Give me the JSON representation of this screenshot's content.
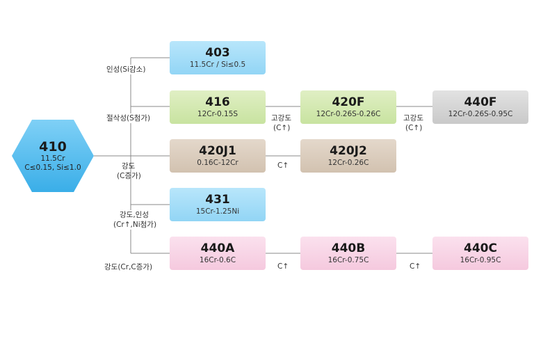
{
  "root": {
    "title": "410",
    "line1": "11.5Cr",
    "line2": "C≤0.15, Si≤1.0"
  },
  "grades": {
    "g403": {
      "title": "403",
      "sub": "11.5Cr / Si≤0.5"
    },
    "g416": {
      "title": "416",
      "sub": "12Cr-0.15S"
    },
    "g420f": {
      "title": "420F",
      "sub": "12Cr-0.26S-0.26C"
    },
    "g440f": {
      "title": "440F",
      "sub": "12Cr-0.26S-0.95C"
    },
    "g420j1": {
      "title": "420J1",
      "sub": "0.16C-12Cr"
    },
    "g420j2": {
      "title": "420J2",
      "sub": "12Cr-0.26C"
    },
    "g431": {
      "title": "431",
      "sub": "15Cr-1.25Ni"
    },
    "g440a": {
      "title": "440A",
      "sub": "16Cr-0.6C"
    },
    "g440b": {
      "title": "440B",
      "sub": "16Cr-0.75C"
    },
    "g440c": {
      "title": "440C",
      "sub": "16Cr-0.95C"
    }
  },
  "labels": {
    "toughness_si": "인성(Si감소)",
    "machinability_s": "절삭성(S첨가)",
    "strength_c": "강도",
    "strength_c2": "(C증가)",
    "strength_tough": "강도,인성",
    "strength_tough2": "(Cr↑,Ni첨가)",
    "strength_crc": "강도(Cr,C증가)",
    "high_strength_a": "고강도",
    "high_strength_a2": "(C↑)",
    "high_strength_b": "고강도",
    "high_strength_b2": "(C↑)",
    "c_up_j": "C↑",
    "c_up_a": "C↑",
    "c_up_b": "C↑"
  },
  "colors": {
    "hex_fill": "#4cb6ec",
    "line": "#888888"
  }
}
